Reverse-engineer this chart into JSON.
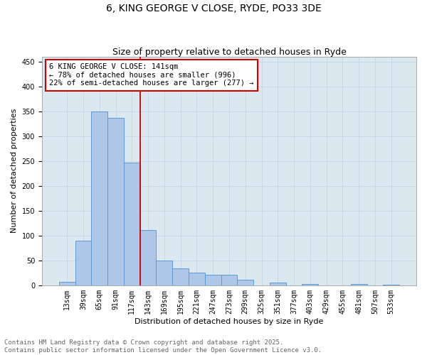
{
  "title_line1": "6, KING GEORGE V CLOSE, RYDE, PO33 3DE",
  "title_line2": "Size of property relative to detached houses in Ryde",
  "xlabel": "Distribution of detached houses by size in Ryde",
  "ylabel": "Number of detached properties",
  "categories": [
    "13sqm",
    "39sqm",
    "65sqm",
    "91sqm",
    "117sqm",
    "143sqm",
    "169sqm",
    "195sqm",
    "221sqm",
    "247sqm",
    "273sqm",
    "299sqm",
    "325sqm",
    "351sqm",
    "377sqm",
    "403sqm",
    "429sqm",
    "455sqm",
    "481sqm",
    "507sqm",
    "533sqm"
  ],
  "values": [
    7,
    90,
    350,
    336,
    247,
    111,
    50,
    34,
    25,
    21,
    21,
    11,
    0,
    6,
    0,
    3,
    0,
    0,
    2,
    0,
    1
  ],
  "bar_color": "#aec6e8",
  "bar_edge_color": "#5b9bd5",
  "vline_color": "#cc0000",
  "vline_index": 5,
  "annotation_text": "6 KING GEORGE V CLOSE: 141sqm\n← 78% of detached houses are smaller (996)\n22% of semi-detached houses are larger (277) →",
  "annotation_box_color": "#cc0000",
  "ylim": [
    0,
    460
  ],
  "yticks": [
    0,
    50,
    100,
    150,
    200,
    250,
    300,
    350,
    400,
    450
  ],
  "grid_color": "#c8d8e8",
  "background_color": "#dce8f0",
  "footer_line1": "Contains HM Land Registry data © Crown copyright and database right 2025.",
  "footer_line2": "Contains public sector information licensed under the Open Government Licence v3.0.",
  "title_fontsize": 10,
  "subtitle_fontsize": 9,
  "label_fontsize": 8,
  "tick_fontsize": 7,
  "annot_fontsize": 7.5,
  "footer_fontsize": 6.5
}
